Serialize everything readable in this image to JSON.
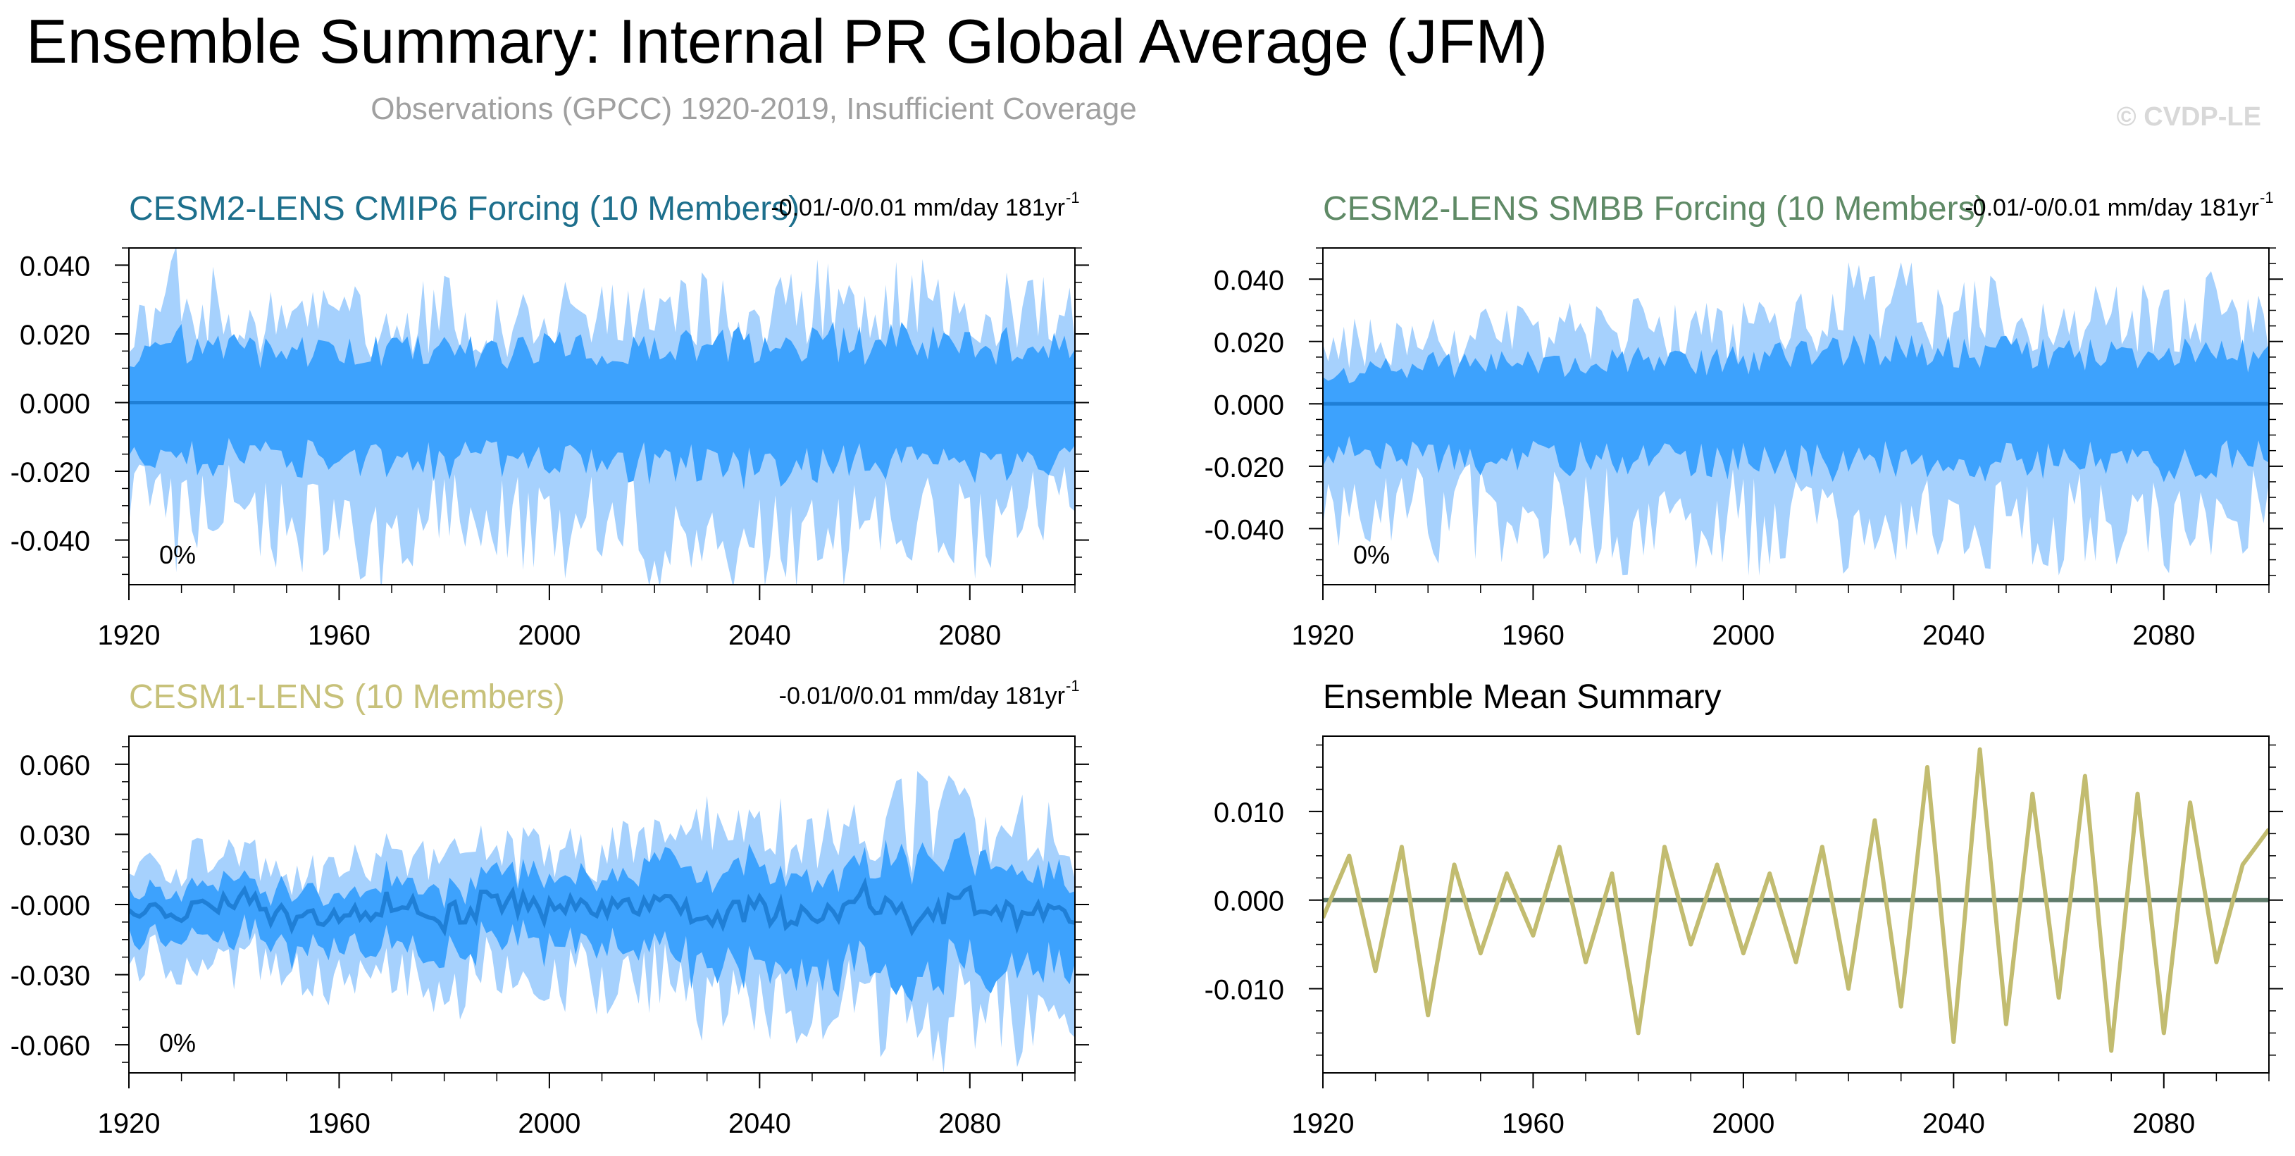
{
  "header": {
    "title": "Ensemble Summary: Internal PR Global Average (JFM)",
    "subtitle": "Observations (GPCC) 1920-2019, Insufficient Coverage",
    "watermark": "© CVDP-LE"
  },
  "colors": {
    "title": "#000000",
    "subtitle": "#a0a0a0",
    "watermark": "#d8d8d8",
    "band_outer": "#a6d1fd",
    "band_inner": "#3da2fd",
    "mean_line": "#1f7fd6",
    "cmip6_title": "#1d6f8c",
    "smbb_title": "#5f8a66",
    "cesm1_title": "#c7c17a",
    "summary_line": "#c2bc70",
    "summary_zero": "#5e7a6a"
  },
  "chart_data": [
    {
      "id": "cmip6",
      "type": "area",
      "title": "CESM2-LENS CMIP6 Forcing (10 Members)",
      "title_color": "#1d6f8c",
      "trend_label": "-0.01/-0/0.01 mm/day 181yr",
      "trend_sup": "-1",
      "percent_label": "0%",
      "xlim": [
        1920,
        2100
      ],
      "ylim": [
        -0.053,
        0.045
      ],
      "xticks": [
        1920,
        1960,
        2000,
        2040,
        2080
      ],
      "xtick_labels": [
        "1920",
        "1960",
        "2000",
        "2040",
        "2080"
      ],
      "yticks": [
        0.04,
        0.02,
        0.0,
        -0.02,
        -0.04
      ],
      "ytick_labels": [
        "0.040",
        "0.020",
        "0.000",
        "-0.020",
        "-0.040"
      ],
      "series": [
        {
          "name": "outer range",
          "x": [
            1920,
            1930,
            1940,
            1950,
            1960,
            1970,
            1980,
            1990,
            2000,
            2010,
            2020,
            2030,
            2040,
            2050,
            2060,
            2070,
            2080,
            2090,
            2100
          ],
          "upper": [
            0.024,
            0.04,
            0.029,
            0.026,
            0.03,
            0.028,
            0.031,
            0.026,
            0.029,
            0.03,
            0.03,
            0.032,
            0.031,
            0.035,
            0.032,
            0.036,
            0.03,
            0.035,
            0.03
          ],
          "lower": [
            -0.035,
            -0.042,
            -0.038,
            -0.044,
            -0.04,
            -0.05,
            -0.043,
            -0.04,
            -0.043,
            -0.042,
            -0.045,
            -0.044,
            -0.05,
            -0.046,
            -0.045,
            -0.042,
            -0.046,
            -0.041,
            -0.035
          ]
        },
        {
          "name": "inner range",
          "x": [
            1920,
            1930,
            1940,
            1950,
            1960,
            1970,
            1980,
            1990,
            2000,
            2010,
            2020,
            2030,
            2040,
            2050,
            2060,
            2070,
            2080,
            2090,
            2100
          ],
          "upper": [
            0.014,
            0.02,
            0.018,
            0.016,
            0.018,
            0.017,
            0.019,
            0.016,
            0.018,
            0.019,
            0.018,
            0.02,
            0.02,
            0.022,
            0.019,
            0.021,
            0.018,
            0.02,
            0.018
          ],
          "lower": [
            -0.015,
            -0.02,
            -0.018,
            -0.02,
            -0.019,
            -0.023,
            -0.02,
            -0.019,
            -0.02,
            -0.02,
            -0.021,
            -0.021,
            -0.023,
            -0.021,
            -0.021,
            -0.02,
            -0.022,
            -0.02,
            -0.017
          ]
        },
        {
          "name": "ensemble mean",
          "x": [
            1920,
            2100
          ],
          "y": [
            0.0,
            0.0
          ]
        }
      ]
    },
    {
      "id": "smbb",
      "type": "area",
      "title": "CESM2-LENS SMBB Forcing (10 Members)",
      "title_color": "#5f8a66",
      "trend_label": "-0.01/-0/0.01 mm/day 181yr",
      "trend_sup": "-1",
      "percent_label": "0%",
      "xlim": [
        1920,
        2100
      ],
      "ylim": [
        -0.058,
        0.05
      ],
      "xticks": [
        1920,
        1960,
        2000,
        2040,
        2080
      ],
      "xtick_labels": [
        "1920",
        "1960",
        "2000",
        "2040",
        "2080"
      ],
      "yticks": [
        0.04,
        0.02,
        0.0,
        -0.02,
        -0.04
      ],
      "ytick_labels": [
        "0.040",
        "0.020",
        "0.000",
        "-0.020",
        "-0.040"
      ],
      "series": [
        {
          "name": "outer range",
          "x": [
            1920,
            1930,
            1940,
            1950,
            1960,
            1970,
            1980,
            1990,
            2000,
            2010,
            2020,
            2030,
            2040,
            2050,
            2060,
            2070,
            2080,
            2090,
            2100
          ],
          "upper": [
            0.018,
            0.026,
            0.028,
            0.025,
            0.03,
            0.027,
            0.029,
            0.026,
            0.03,
            0.032,
            0.038,
            0.04,
            0.033,
            0.036,
            0.034,
            0.033,
            0.032,
            0.037,
            0.03
          ],
          "lower": [
            -0.04,
            -0.04,
            -0.043,
            -0.042,
            -0.045,
            -0.044,
            -0.047,
            -0.045,
            -0.046,
            -0.048,
            -0.047,
            -0.045,
            -0.05,
            -0.048,
            -0.047,
            -0.046,
            -0.05,
            -0.045,
            -0.04
          ]
        },
        {
          "name": "inner range",
          "x": [
            1920,
            1930,
            1940,
            1950,
            1960,
            1970,
            1980,
            1990,
            2000,
            2010,
            2020,
            2030,
            2040,
            2050,
            2060,
            2070,
            2080,
            2090,
            2100
          ],
          "upper": [
            0.01,
            0.013,
            0.015,
            0.014,
            0.016,
            0.015,
            0.016,
            0.015,
            0.017,
            0.018,
            0.02,
            0.021,
            0.019,
            0.02,
            0.019,
            0.018,
            0.018,
            0.02,
            0.017
          ],
          "lower": [
            -0.018,
            -0.019,
            -0.02,
            -0.02,
            -0.021,
            -0.021,
            -0.022,
            -0.021,
            -0.022,
            -0.022,
            -0.022,
            -0.021,
            -0.023,
            -0.022,
            -0.022,
            -0.021,
            -0.023,
            -0.021,
            -0.019
          ]
        },
        {
          "name": "ensemble mean",
          "x": [
            1920,
            2100
          ],
          "y": [
            0.0,
            0.0
          ]
        }
      ]
    },
    {
      "id": "cesm1",
      "type": "area",
      "title": "CESM1-LENS (10 Members)",
      "title_color": "#c7c17a",
      "trend_label": "-0.01/0/0.01 mm/day 181yr",
      "trend_sup": "-1",
      "percent_label": "0%",
      "xlim": [
        1920,
        2100
      ],
      "ylim": [
        -0.072,
        0.072
      ],
      "xticks": [
        1920,
        1960,
        2000,
        2040,
        2080
      ],
      "xtick_labels": [
        "1920",
        "1960",
        "2000",
        "2040",
        "2080"
      ],
      "yticks": [
        0.06,
        0.03,
        0.0,
        -0.03,
        -0.06
      ],
      "ytick_labels": [
        "0.060",
        "0.030",
        "-0.000",
        "-0.030",
        "-0.060"
      ],
      "series": [
        {
          "name": "outer range",
          "x": [
            1920,
            1930,
            1940,
            1950,
            1960,
            1970,
            1980,
            1990,
            2000,
            2010,
            2020,
            2030,
            2040,
            2050,
            2060,
            2070,
            2080,
            2090,
            2100
          ],
          "upper": [
            0.02,
            0.022,
            0.025,
            0.022,
            0.024,
            0.026,
            0.028,
            0.025,
            0.03,
            0.028,
            0.035,
            0.045,
            0.038,
            0.036,
            0.04,
            0.055,
            0.045,
            0.042,
            0.035
          ],
          "lower": [
            -0.025,
            -0.028,
            -0.03,
            -0.032,
            -0.031,
            -0.033,
            -0.035,
            -0.034,
            -0.036,
            -0.038,
            -0.04,
            -0.045,
            -0.047,
            -0.05,
            -0.052,
            -0.057,
            -0.055,
            -0.05,
            -0.045
          ]
        },
        {
          "name": "inner range",
          "x": [
            1920,
            1930,
            1940,
            1950,
            1960,
            1970,
            1980,
            1990,
            2000,
            2010,
            2020,
            2030,
            2040,
            2050,
            2060,
            2070,
            2080,
            2090,
            2100
          ],
          "upper": [
            0.01,
            0.011,
            0.012,
            0.011,
            0.012,
            0.013,
            0.014,
            0.013,
            0.015,
            0.014,
            0.018,
            0.024,
            0.02,
            0.019,
            0.021,
            0.03,
            0.024,
            0.022,
            0.018
          ],
          "lower": [
            -0.013,
            -0.014,
            -0.016,
            -0.017,
            -0.016,
            -0.018,
            -0.019,
            -0.018,
            -0.02,
            -0.021,
            -0.023,
            -0.026,
            -0.027,
            -0.03,
            -0.031,
            -0.034,
            -0.032,
            -0.029,
            -0.026
          ]
        },
        {
          "name": "ensemble mean",
          "x": [
            1920,
            1930,
            1940,
            1950,
            1960,
            1970,
            1980,
            1990,
            2000,
            2010,
            2020,
            2030,
            2040,
            2050,
            2060,
            2070,
            2080,
            2090,
            2100
          ],
          "y": [
            -0.002,
            -0.004,
            0.002,
            -0.005,
            -0.003,
            0.0,
            -0.006,
            0.002,
            -0.004,
            -0.001,
            0.003,
            -0.007,
            -0.002,
            -0.008,
            0.004,
            -0.009,
            0.003,
            -0.006,
            -0.004
          ]
        }
      ]
    },
    {
      "id": "summary",
      "type": "line",
      "title": "Ensemble Mean Summary",
      "title_color": "#000000",
      "xlim": [
        1920,
        2100
      ],
      "ylim": [
        -0.0195,
        0.0185
      ],
      "xticks": [
        1920,
        1960,
        2000,
        2040,
        2080
      ],
      "xtick_labels": [
        "1920",
        "1960",
        "2000",
        "2040",
        "2080"
      ],
      "yticks": [
        0.01,
        0.0,
        -0.01
      ],
      "ytick_labels": [
        "0.010",
        "0.000",
        "-0.010"
      ],
      "series": [
        {
          "name": "CESM1-LENS ensemble mean",
          "x": [
            1920,
            1925,
            1930,
            1935,
            1940,
            1945,
            1950,
            1955,
            1960,
            1965,
            1970,
            1975,
            1980,
            1985,
            1990,
            1995,
            2000,
            2005,
            2010,
            2015,
            2020,
            2025,
            2030,
            2035,
            2040,
            2045,
            2050,
            2055,
            2060,
            2065,
            2070,
            2075,
            2080,
            2085,
            2090,
            2095,
            2100
          ],
          "y": [
            -0.002,
            0.005,
            -0.008,
            0.006,
            -0.013,
            0.004,
            -0.006,
            0.003,
            -0.004,
            0.006,
            -0.007,
            0.003,
            -0.015,
            0.006,
            -0.005,
            0.004,
            -0.006,
            0.003,
            -0.007,
            0.006,
            -0.01,
            0.009,
            -0.012,
            0.015,
            -0.016,
            0.017,
            -0.014,
            0.012,
            -0.011,
            0.014,
            -0.017,
            0.012,
            -0.015,
            0.011,
            -0.007,
            0.004,
            0.008
          ]
        },
        {
          "name": "CESM2-LENS ensemble mean",
          "x": [
            1920,
            2100
          ],
          "y": [
            0.0,
            0.0
          ]
        }
      ]
    }
  ]
}
